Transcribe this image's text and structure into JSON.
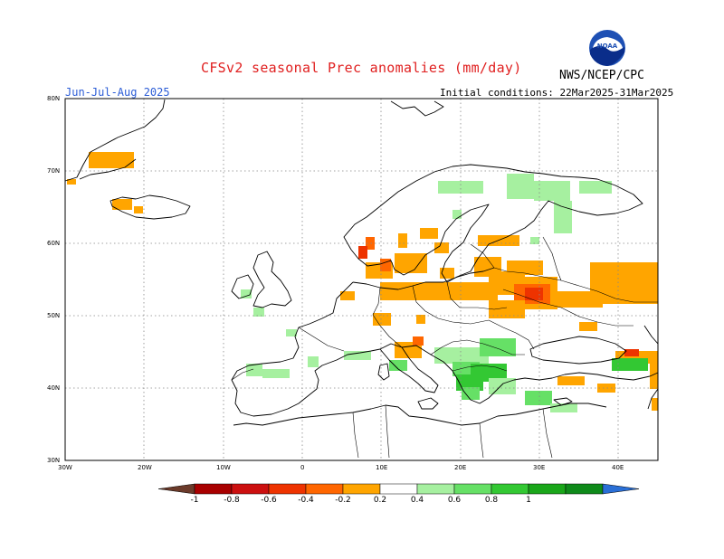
{
  "header": {
    "title": "CFSv2 seasonal Prec anomalies (mm/day)",
    "season": "Jun-Jul-Aug 2025",
    "initial_conditions": "Initial conditions: 22Mar2025-31Mar2025",
    "organization": "NWS/NCEP/CPC",
    "logo_text": "NOAA"
  },
  "axes": {
    "lat_labels": [
      "80N",
      "70N",
      "60N",
      "50N",
      "40N",
      "30N"
    ],
    "lon_labels": [
      "30W",
      "20W",
      "10W",
      "0",
      "10E",
      "20E",
      "30E",
      "40E"
    ]
  },
  "colorbar": {
    "labels": [
      "-1",
      "-0.8",
      "-0.6",
      "-0.4",
      "-0.2",
      "0.2",
      "0.4",
      "0.6",
      "0.8",
      "1"
    ],
    "colors": {
      "below_min": "#6b3a2a",
      "neg_1": "#a80000",
      "neg_08": "#cc1010",
      "neg_06": "#ee3300",
      "neg_04": "#ff6600",
      "neg_02": "#ffa500",
      "neutral": "#ffffff",
      "pos_02": "#a6f0a0",
      "pos_04": "#66e066",
      "pos_06": "#33c833",
      "pos_08": "#1aa61a",
      "pos_1": "#0f8a1a",
      "above_max": "#2a6fd6"
    }
  }
}
